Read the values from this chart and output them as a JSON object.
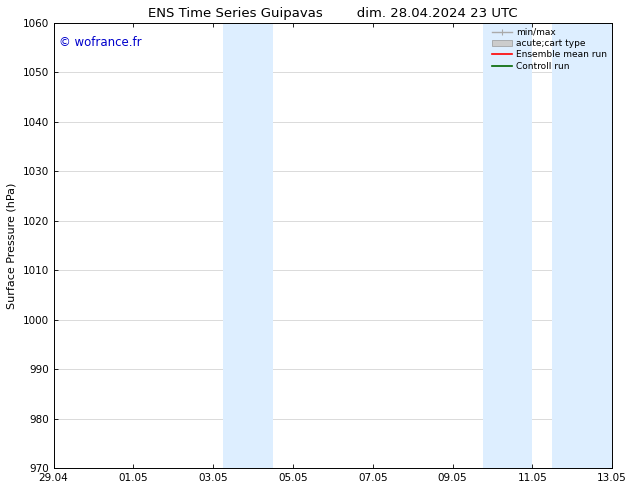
{
  "title": "ENS Time Series Guipavas",
  "title2": "dim. 28.04.2024 23 UTC",
  "ylabel": "Surface Pressure (hPa)",
  "ylim": [
    970,
    1060
  ],
  "yticks": [
    970,
    980,
    990,
    1000,
    1010,
    1020,
    1030,
    1040,
    1050,
    1060
  ],
  "xtick_labels": [
    "29.04",
    "01.05",
    "03.05",
    "05.05",
    "07.05",
    "09.05",
    "11.05",
    "13.05"
  ],
  "xtick_positions": [
    0,
    2,
    4,
    6,
    8,
    10,
    12,
    14
  ],
  "xlim": [
    0,
    14
  ],
  "watermark": "© wofrance.fr",
  "watermark_color": "#0000cc",
  "shade_regions": [
    {
      "x_start": 4.25,
      "x_end": 5.5
    },
    {
      "x_start": 10.75,
      "x_end": 12.0
    },
    {
      "x_start": 12.5,
      "x_end": 14.0
    }
  ],
  "shade_color": "#ddeeff",
  "bg_color": "#ffffff",
  "grid_color": "#cccccc",
  "title_fontsize": 9.5,
  "tick_fontsize": 7.5,
  "ylabel_fontsize": 8
}
